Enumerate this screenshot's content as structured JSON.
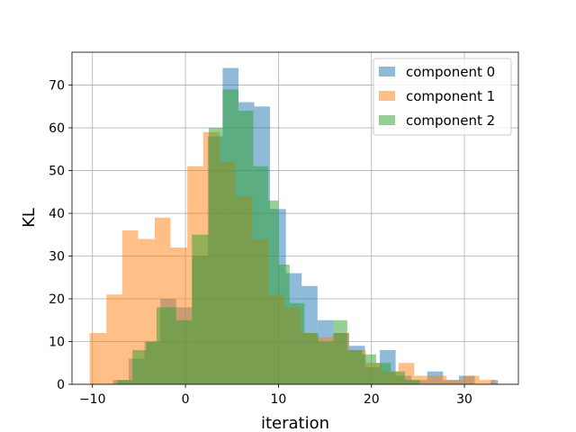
{
  "chart_data": {
    "type": "histogram",
    "title": "",
    "xlabel": "iteration",
    "ylabel": "KL",
    "xlim": [
      -12.2,
      35.8
    ],
    "ylim": [
      0,
      77.7
    ],
    "xticks": [
      -10,
      0,
      10,
      20,
      30
    ],
    "yticks": [
      0,
      10,
      20,
      30,
      40,
      50,
      60,
      70
    ],
    "grid": true,
    "legend_position": "top-right",
    "series": [
      {
        "name": "component 0",
        "color": "#1f77b4",
        "bins": [
          {
            "x0": -7.8,
            "x1": -6.1,
            "count": 1
          },
          {
            "x0": -6.1,
            "x1": -4.4,
            "count": 6
          },
          {
            "x0": -4.4,
            "x1": -2.7,
            "count": 10
          },
          {
            "x0": -2.7,
            "x1": -1.0,
            "count": 20
          },
          {
            "x0": -1.0,
            "x1": 0.7,
            "count": 18
          },
          {
            "x0": 0.7,
            "x1": 2.4,
            "count": 30
          },
          {
            "x0": 2.4,
            "x1": 4.0,
            "count": 58
          },
          {
            "x0": 4.0,
            "x1": 5.7,
            "count": 74
          },
          {
            "x0": 5.7,
            "x1": 7.4,
            "count": 66
          },
          {
            "x0": 7.4,
            "x1": 9.1,
            "count": 65
          },
          {
            "x0": 9.1,
            "x1": 10.8,
            "count": 41
          },
          {
            "x0": 10.8,
            "x1": 12.5,
            "count": 26
          },
          {
            "x0": 12.5,
            "x1": 14.2,
            "count": 23
          },
          {
            "x0": 14.2,
            "x1": 15.9,
            "count": 15
          },
          {
            "x0": 15.9,
            "x1": 17.6,
            "count": 12
          },
          {
            "x0": 17.6,
            "x1": 19.3,
            "count": 9
          },
          {
            "x0": 19.3,
            "x1": 20.9,
            "count": 4
          },
          {
            "x0": 20.9,
            "x1": 22.6,
            "count": 8
          },
          {
            "x0": 22.6,
            "x1": 24.3,
            "count": 2
          },
          {
            "x0": 24.3,
            "x1": 26.0,
            "count": 1
          },
          {
            "x0": 26.0,
            "x1": 27.7,
            "count": 3
          },
          {
            "x0": 27.7,
            "x1": 29.4,
            "count": 1
          },
          {
            "x0": 29.4,
            "x1": 31.1,
            "count": 2
          },
          {
            "x0": 31.1,
            "x1": 32.8,
            "count": 0
          },
          {
            "x0": 32.8,
            "x1": 33.6,
            "count": 1
          }
        ]
      },
      {
        "name": "component 1",
        "color": "#ff7f0e",
        "bins": [
          {
            "x0": -10.3,
            "x1": -8.5,
            "count": 12
          },
          {
            "x0": -8.5,
            "x1": -6.8,
            "count": 21
          },
          {
            "x0": -6.8,
            "x1": -5.1,
            "count": 36
          },
          {
            "x0": -5.1,
            "x1": -3.3,
            "count": 34
          },
          {
            "x0": -3.3,
            "x1": -1.6,
            "count": 39
          },
          {
            "x0": -1.6,
            "x1": 0.2,
            "count": 32
          },
          {
            "x0": 0.2,
            "x1": 1.9,
            "count": 51
          },
          {
            "x0": 1.9,
            "x1": 3.7,
            "count": 59
          },
          {
            "x0": 3.7,
            "x1": 5.4,
            "count": 52
          },
          {
            "x0": 5.4,
            "x1": 7.2,
            "count": 44
          },
          {
            "x0": 7.2,
            "x1": 8.9,
            "count": 34
          },
          {
            "x0": 8.9,
            "x1": 10.6,
            "count": 21
          },
          {
            "x0": 10.6,
            "x1": 12.4,
            "count": 18
          },
          {
            "x0": 12.4,
            "x1": 14.1,
            "count": 12
          },
          {
            "x0": 14.1,
            "x1": 15.9,
            "count": 11
          },
          {
            "x0": 15.9,
            "x1": 17.6,
            "count": 12
          },
          {
            "x0": 17.6,
            "x1": 19.4,
            "count": 8
          },
          {
            "x0": 19.4,
            "x1": 21.1,
            "count": 5
          },
          {
            "x0": 21.1,
            "x1": 22.9,
            "count": 3
          },
          {
            "x0": 22.9,
            "x1": 24.6,
            "count": 5
          },
          {
            "x0": 24.6,
            "x1": 26.4,
            "count": 2
          },
          {
            "x0": 26.4,
            "x1": 28.1,
            "count": 2
          },
          {
            "x0": 28.1,
            "x1": 29.9,
            "count": 1
          },
          {
            "x0": 29.9,
            "x1": 31.6,
            "count": 2
          },
          {
            "x0": 31.6,
            "x1": 33.3,
            "count": 1
          }
        ]
      },
      {
        "name": "component 2",
        "color": "#2ca02c",
        "bins": [
          {
            "x0": -7.3,
            "x1": -5.7,
            "count": 1
          },
          {
            "x0": -5.7,
            "x1": -4.2,
            "count": 8
          },
          {
            "x0": -4.2,
            "x1": -3.1,
            "count": 10
          },
          {
            "x0": -3.1,
            "x1": -1.0,
            "count": 18
          },
          {
            "x0": -1.0,
            "x1": 0.7,
            "count": 15
          },
          {
            "x0": 0.7,
            "x1": 2.5,
            "count": 35
          },
          {
            "x0": 2.5,
            "x1": 4.0,
            "count": 60
          },
          {
            "x0": 4.0,
            "x1": 5.7,
            "count": 69
          },
          {
            "x0": 5.7,
            "x1": 7.3,
            "count": 64
          },
          {
            "x0": 7.3,
            "x1": 8.9,
            "count": 51
          },
          {
            "x0": 8.9,
            "x1": 10.0,
            "count": 43
          },
          {
            "x0": 10.0,
            "x1": 11.2,
            "count": 28
          },
          {
            "x0": 11.2,
            "x1": 12.8,
            "count": 19
          },
          {
            "x0": 12.8,
            "x1": 14.3,
            "count": 12
          },
          {
            "x0": 14.3,
            "x1": 15.9,
            "count": 10
          },
          {
            "x0": 15.9,
            "x1": 17.4,
            "count": 15
          },
          {
            "x0": 17.4,
            "x1": 19.0,
            "count": 8
          },
          {
            "x0": 19.0,
            "x1": 20.5,
            "count": 7
          },
          {
            "x0": 20.5,
            "x1": 22.1,
            "count": 5
          },
          {
            "x0": 22.1,
            "x1": 23.6,
            "count": 3
          },
          {
            "x0": 23.6,
            "x1": 25.2,
            "count": 1
          }
        ]
      }
    ]
  }
}
